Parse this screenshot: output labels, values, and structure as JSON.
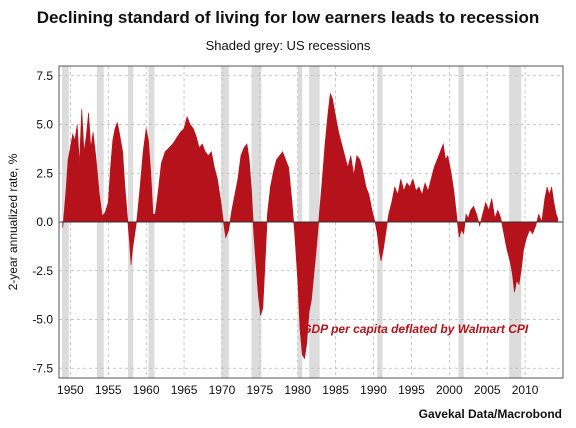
{
  "chart_data": {
    "type": "area",
    "title": "Declining standard of living for low earners leads to recession",
    "subtitle": "Shaded grey: US recessions",
    "ylabel": "2-year annualized rate, %",
    "xlabel": "",
    "xlim": [
      1948.5,
      2015.0
    ],
    "ylim": [
      -8.0,
      8.0
    ],
    "x_ticks": [
      1950,
      1955,
      1960,
      1965,
      1970,
      1975,
      1980,
      1985,
      1990,
      1995,
      2000,
      2005,
      2010
    ],
    "x_tick_labels": [
      "1950",
      "1955",
      "1960",
      "1965",
      "1970",
      "1975",
      "1980",
      "1985",
      "1990",
      "1995",
      "2000",
      "2005",
      "2010"
    ],
    "y_ticks": [
      -7.5,
      -5.0,
      -2.5,
      0.0,
      2.5,
      5.0,
      7.5
    ],
    "y_tick_labels": [
      "-7.5",
      "-5.0",
      "-2.5",
      "0.0",
      "2.5",
      "5.0",
      "7.5"
    ],
    "grid": true,
    "series": [
      {
        "name": "GDP per capita deflated by Walmart CPI",
        "color": "#b5121b",
        "points": [
          [
            1949.0,
            -0.3
          ],
          [
            1949.4,
            1.5
          ],
          [
            1949.7,
            3.2
          ],
          [
            1950.0,
            3.8
          ],
          [
            1950.3,
            4.5
          ],
          [
            1950.6,
            4.2
          ],
          [
            1950.9,
            5.0
          ],
          [
            1951.2,
            3.0
          ],
          [
            1951.5,
            5.8
          ],
          [
            1951.8,
            3.6
          ],
          [
            1952.1,
            4.4
          ],
          [
            1952.4,
            5.6
          ],
          [
            1952.7,
            3.8
          ],
          [
            1953.0,
            4.6
          ],
          [
            1953.4,
            3.2
          ],
          [
            1953.8,
            1.5
          ],
          [
            1954.2,
            0.3
          ],
          [
            1954.6,
            0.5
          ],
          [
            1955.0,
            1.0
          ],
          [
            1955.3,
            2.8
          ],
          [
            1955.6,
            4.2
          ],
          [
            1955.9,
            4.8
          ],
          [
            1956.2,
            5.1
          ],
          [
            1956.5,
            4.5
          ],
          [
            1956.9,
            3.6
          ],
          [
            1957.2,
            1.8
          ],
          [
            1957.5,
            0.4
          ],
          [
            1957.8,
            -1.0
          ],
          [
            1958.0,
            -2.2
          ],
          [
            1958.2,
            -1.4
          ],
          [
            1958.5,
            -0.6
          ],
          [
            1958.8,
            0.2
          ],
          [
            1959.2,
            1.8
          ],
          [
            1959.6,
            3.6
          ],
          [
            1960.0,
            4.8
          ],
          [
            1960.3,
            4.2
          ],
          [
            1960.6,
            2.6
          ],
          [
            1960.9,
            0.4
          ],
          [
            1961.2,
            0.4
          ],
          [
            1961.6,
            1.6
          ],
          [
            1962.0,
            3.0
          ],
          [
            1962.5,
            3.6
          ],
          [
            1963.0,
            3.8
          ],
          [
            1963.5,
            4.0
          ],
          [
            1964.0,
            4.3
          ],
          [
            1964.5,
            4.6
          ],
          [
            1965.0,
            4.8
          ],
          [
            1965.4,
            5.4
          ],
          [
            1965.8,
            5.0
          ],
          [
            1966.2,
            4.8
          ],
          [
            1966.6,
            4.4
          ],
          [
            1967.0,
            3.8
          ],
          [
            1967.4,
            4.0
          ],
          [
            1967.8,
            3.6
          ],
          [
            1968.2,
            3.4
          ],
          [
            1968.6,
            3.6
          ],
          [
            1969.0,
            2.8
          ],
          [
            1969.4,
            2.2
          ],
          [
            1969.8,
            1.2
          ],
          [
            1970.2,
            0.0
          ],
          [
            1970.5,
            -0.8
          ],
          [
            1970.9,
            -0.4
          ],
          [
            1971.3,
            0.6
          ],
          [
            1971.7,
            1.4
          ],
          [
            1972.1,
            2.2
          ],
          [
            1972.5,
            3.4
          ],
          [
            1972.9,
            3.8
          ],
          [
            1973.3,
            4.0
          ],
          [
            1973.6,
            3.2
          ],
          [
            1973.9,
            1.6
          ],
          [
            1974.2,
            -0.6
          ],
          [
            1974.5,
            -2.2
          ],
          [
            1974.8,
            -3.8
          ],
          [
            1975.1,
            -4.8
          ],
          [
            1975.4,
            -4.4
          ],
          [
            1975.7,
            -2.0
          ],
          [
            1976.0,
            0.4
          ],
          [
            1976.4,
            1.8
          ],
          [
            1976.8,
            2.6
          ],
          [
            1977.2,
            3.2
          ],
          [
            1977.6,
            3.4
          ],
          [
            1978.0,
            3.6
          ],
          [
            1978.4,
            3.2
          ],
          [
            1978.8,
            2.8
          ],
          [
            1979.2,
            1.2
          ],
          [
            1979.6,
            -0.6
          ],
          [
            1980.0,
            -3.0
          ],
          [
            1980.3,
            -5.5
          ],
          [
            1980.6,
            -6.8
          ],
          [
            1980.9,
            -7.0
          ],
          [
            1981.2,
            -6.2
          ],
          [
            1981.5,
            -4.6
          ],
          [
            1981.8,
            -4.0
          ],
          [
            1982.1,
            -2.8
          ],
          [
            1982.4,
            -1.6
          ],
          [
            1982.8,
            0.2
          ],
          [
            1983.2,
            2.0
          ],
          [
            1983.6,
            4.0
          ],
          [
            1984.0,
            5.6
          ],
          [
            1984.3,
            6.6
          ],
          [
            1984.6,
            6.3
          ],
          [
            1985.0,
            5.4
          ],
          [
            1985.4,
            4.6
          ],
          [
            1985.8,
            4.0
          ],
          [
            1986.2,
            3.4
          ],
          [
            1986.6,
            2.8
          ],
          [
            1987.0,
            3.4
          ],
          [
            1987.4,
            2.4
          ],
          [
            1987.8,
            3.4
          ],
          [
            1988.2,
            3.2
          ],
          [
            1988.6,
            2.6
          ],
          [
            1989.0,
            1.8
          ],
          [
            1989.4,
            1.4
          ],
          [
            1989.8,
            0.6
          ],
          [
            1990.2,
            0.0
          ],
          [
            1990.5,
            -0.6
          ],
          [
            1990.8,
            -1.6
          ],
          [
            1991.0,
            -2.0
          ],
          [
            1991.3,
            -1.4
          ],
          [
            1991.6,
            -0.6
          ],
          [
            1992.0,
            0.4
          ],
          [
            1992.4,
            1.0
          ],
          [
            1992.8,
            1.8
          ],
          [
            1993.2,
            1.4
          ],
          [
            1993.6,
            2.2
          ],
          [
            1994.0,
            1.6
          ],
          [
            1994.4,
            2.0
          ],
          [
            1994.8,
            1.8
          ],
          [
            1995.2,
            2.2
          ],
          [
            1995.6,
            1.6
          ],
          [
            1996.0,
            1.8
          ],
          [
            1996.4,
            1.4
          ],
          [
            1996.8,
            2.0
          ],
          [
            1997.2,
            1.6
          ],
          [
            1997.6,
            2.2
          ],
          [
            1998.0,
            2.8
          ],
          [
            1998.4,
            3.2
          ],
          [
            1998.8,
            3.6
          ],
          [
            1999.2,
            4.0
          ],
          [
            1999.5,
            3.2
          ],
          [
            1999.8,
            3.4
          ],
          [
            2000.2,
            2.6
          ],
          [
            2000.6,
            1.6
          ],
          [
            2001.0,
            0.2
          ],
          [
            2001.3,
            -0.8
          ],
          [
            2001.6,
            -0.4
          ],
          [
            2001.9,
            -0.6
          ],
          [
            2002.2,
            0.4
          ],
          [
            2002.5,
            0.2
          ],
          [
            2002.8,
            0.6
          ],
          [
            2003.2,
            0.8
          ],
          [
            2003.6,
            0.4
          ],
          [
            2004.0,
            -0.2
          ],
          [
            2004.4,
            0.4
          ],
          [
            2004.8,
            1.0
          ],
          [
            2005.2,
            0.6
          ],
          [
            2005.6,
            1.2
          ],
          [
            2006.0,
            0.2
          ],
          [
            2006.4,
            0.6
          ],
          [
            2006.8,
            0.2
          ],
          [
            2007.2,
            -0.6
          ],
          [
            2007.6,
            -1.4
          ],
          [
            2008.0,
            -2.0
          ],
          [
            2008.3,
            -2.6
          ],
          [
            2008.6,
            -3.6
          ],
          [
            2008.9,
            -3.0
          ],
          [
            2009.2,
            -3.2
          ],
          [
            2009.5,
            -2.4
          ],
          [
            2009.8,
            -1.4
          ],
          [
            2010.2,
            -0.8
          ],
          [
            2010.6,
            -0.4
          ],
          [
            2011.0,
            -0.6
          ],
          [
            2011.4,
            -0.2
          ],
          [
            2011.8,
            0.4
          ],
          [
            2012.2,
            0.0
          ],
          [
            2012.6,
            1.2
          ],
          [
            2012.9,
            1.8
          ],
          [
            2013.2,
            1.4
          ],
          [
            2013.5,
            1.8
          ],
          [
            2013.8,
            1.0
          ],
          [
            2014.1,
            0.4
          ],
          [
            2014.3,
            0.2
          ]
        ]
      }
    ],
    "recessions": [
      [
        1948.9,
        1949.8
      ],
      [
        1953.5,
        1954.4
      ],
      [
        1957.6,
        1958.3
      ],
      [
        1960.3,
        1961.1
      ],
      [
        1969.9,
        1970.9
      ],
      [
        1973.9,
        1975.2
      ],
      [
        1980.0,
        1980.6
      ],
      [
        1981.5,
        1982.9
      ],
      [
        1990.5,
        1991.2
      ],
      [
        2001.2,
        2001.9
      ],
      [
        2007.9,
        2009.5
      ]
    ],
    "recession_color": "#dcdcdc",
    "annotations": [
      {
        "text": "GDP per capita deflated by Walmart CPI",
        "x": 1995.5,
        "y": -5.7
      }
    ],
    "source": "Gavekal Data/Macrobond"
  }
}
